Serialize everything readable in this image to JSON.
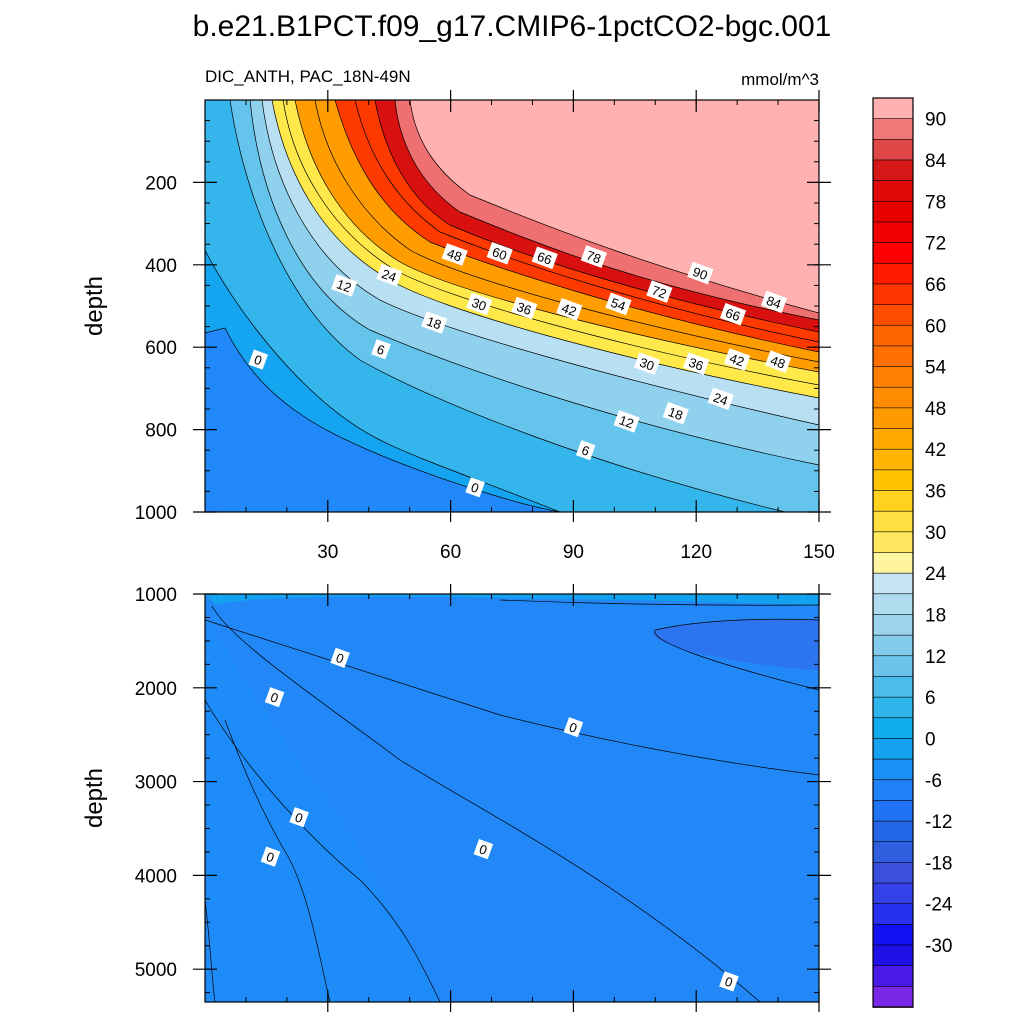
{
  "title": "b.e21.B1PCT.f09_g17.CMIP6-1pctCO2-bgc.001",
  "subtitle_left": "DIC_ANTH, PAC_18N-49N",
  "subtitle_right": "mmol/m^3",
  "chart_data": [
    {
      "type": "heatmap",
      "panel": "upper",
      "xlabel": "",
      "ylabel": "depth",
      "xlim": [
        0,
        150
      ],
      "ylim": [
        1000,
        0
      ],
      "xticks": [
        30,
        60,
        90,
        120,
        150
      ],
      "yticks": [
        200,
        400,
        600,
        800,
        1000
      ],
      "contour_labels": [
        {
          "text": "48",
          "x": 61,
          "y": 375
        },
        {
          "text": "60",
          "x": 72,
          "y": 372
        },
        {
          "text": "66",
          "x": 83,
          "y": 383
        },
        {
          "text": "78",
          "x": 95,
          "y": 380
        },
        {
          "text": "90",
          "x": 121,
          "y": 420
        },
        {
          "text": "84",
          "x": 139,
          "y": 490
        },
        {
          "text": "72",
          "x": 111,
          "y": 465
        },
        {
          "text": "66",
          "x": 129,
          "y": 520
        },
        {
          "text": "24",
          "x": 45,
          "y": 425
        },
        {
          "text": "12",
          "x": 34,
          "y": 450
        },
        {
          "text": "30",
          "x": 67,
          "y": 495
        },
        {
          "text": "36",
          "x": 78,
          "y": 505
        },
        {
          "text": "42",
          "x": 89,
          "y": 508
        },
        {
          "text": "54",
          "x": 101,
          "y": 495
        },
        {
          "text": "18",
          "x": 56,
          "y": 540
        },
        {
          "text": "6",
          "x": 43,
          "y": 605
        },
        {
          "text": "0",
          "x": 13,
          "y": 630
        },
        {
          "text": "30",
          "x": 108,
          "y": 640
        },
        {
          "text": "36",
          "x": 120,
          "y": 640
        },
        {
          "text": "42",
          "x": 130,
          "y": 630
        },
        {
          "text": "48",
          "x": 140,
          "y": 635
        },
        {
          "text": "24",
          "x": 126,
          "y": 725
        },
        {
          "text": "18",
          "x": 115,
          "y": 760
        },
        {
          "text": "12",
          "x": 103,
          "y": 780
        },
        {
          "text": "6",
          "x": 93,
          "y": 850
        },
        {
          "text": "0",
          "x": 66,
          "y": 940
        }
      ]
    },
    {
      "type": "heatmap",
      "panel": "lower",
      "xlabel": "",
      "ylabel": "depth",
      "xlim": [
        0,
        150
      ],
      "ylim": [
        5350,
        1000
      ],
      "xticks": [
        30,
        60,
        90,
        120,
        150
      ],
      "yticks": [
        1000,
        2000,
        3000,
        4000,
        5000
      ],
      "contour_labels": [
        {
          "text": "0",
          "x": 33,
          "y": 1680
        },
        {
          "text": "0",
          "x": 17,
          "y": 2100
        },
        {
          "text": "0",
          "x": 90,
          "y": 2420
        },
        {
          "text": "0",
          "x": 23,
          "y": 3380
        },
        {
          "text": "0",
          "x": 16,
          "y": 3800
        },
        {
          "text": "0",
          "x": 68,
          "y": 3720
        },
        {
          "text": "0",
          "x": 128,
          "y": 5130
        }
      ]
    }
  ],
  "colorbar": {
    "labels": [
      "90",
      "84",
      "78",
      "72",
      "66",
      "60",
      "54",
      "48",
      "42",
      "36",
      "30",
      "24",
      "18",
      "12",
      "6",
      "0",
      "-6",
      "-12",
      "-18",
      "-24",
      "-30"
    ],
    "levels_top_to_bottom": [
      93,
      90,
      87,
      84,
      81,
      78,
      75,
      72,
      69,
      66,
      63,
      60,
      57,
      54,
      51,
      48,
      45,
      42,
      39,
      36,
      33,
      30,
      27,
      24,
      21,
      18,
      15,
      12,
      9,
      6,
      3,
      0,
      -3,
      -6,
      -9,
      -12,
      -15,
      -18,
      -21,
      -24,
      -27,
      -30
    ],
    "colors_top_to_bottom": [
      "#ffb0b0",
      "#f07878",
      "#e04848",
      "#d41818",
      "#e00808",
      "#e80000",
      "#f00000",
      "#ff0000",
      "#ff1a00",
      "#ff3300",
      "#ff4d00",
      "#ff6600",
      "#ff7000",
      "#ff7f00",
      "#ff8c00",
      "#ff9a00",
      "#ffa800",
      "#ffb500",
      "#ffc200",
      "#ffd21e",
      "#ffe040",
      "#ffe860",
      "#fff4a0",
      "#c4e4f4",
      "#b0dcf0",
      "#9cd4ee",
      "#84ccec",
      "#6cc4ec",
      "#4cbcec",
      "#30b4ec",
      "#10acec",
      "#14a2f0",
      "#1890f8",
      "#2080f8",
      "#2074f4",
      "#2468e8",
      "#3060e0",
      "#3a50dc",
      "#3440e8",
      "#2830f0",
      "#1010f0",
      "#2010e8",
      "#4a1ae8",
      "#7a28e8"
    ]
  }
}
